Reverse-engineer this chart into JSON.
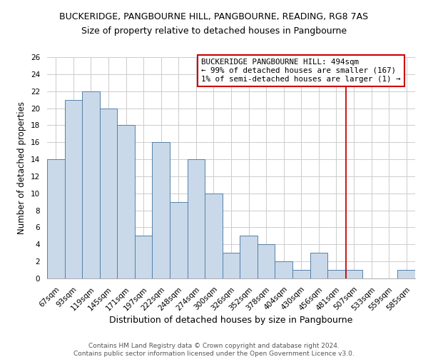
{
  "title": "BUCKERIDGE, PANGBOURNE HILL, PANGBOURNE, READING, RG8 7AS",
  "subtitle": "Size of property relative to detached houses in Pangbourne",
  "xlabel": "Distribution of detached houses by size in Pangbourne",
  "ylabel": "Number of detached properties",
  "bar_color": "#c9d9ea",
  "bar_edge_color": "#5580a8",
  "categories": [
    "67sqm",
    "93sqm",
    "119sqm",
    "145sqm",
    "171sqm",
    "197sqm",
    "222sqm",
    "248sqm",
    "274sqm",
    "300sqm",
    "326sqm",
    "352sqm",
    "378sqm",
    "404sqm",
    "430sqm",
    "456sqm",
    "481sqm",
    "507sqm",
    "533sqm",
    "559sqm",
    "585sqm"
  ],
  "values": [
    14,
    21,
    22,
    20,
    18,
    5,
    16,
    9,
    14,
    10,
    3,
    5,
    4,
    2,
    1,
    3,
    1,
    1,
    0,
    0,
    1
  ],
  "ylim": [
    0,
    26
  ],
  "yticks": [
    0,
    2,
    4,
    6,
    8,
    10,
    12,
    14,
    16,
    18,
    20,
    22,
    24,
    26
  ],
  "annotation_box_text": "BUCKERIDGE PANGBOURNE HILL: 494sqm\n← 99% of detached houses are smaller (167)\n1% of semi-detached houses are larger (1) →",
  "vline_x_index": 16.57,
  "vline_color": "#cc0000",
  "annotation_box_color": "#cc0000",
  "footer1": "Contains HM Land Registry data © Crown copyright and database right 2024.",
  "footer2": "Contains public sector information licensed under the Open Government Licence v3.0.",
  "background_color": "#ffffff",
  "grid_color": "#cccccc",
  "title_fontsize": 9,
  "subtitle_fontsize": 9,
  "tick_label_fontsize": 7.5,
  "ylabel_fontsize": 8.5,
  "xlabel_fontsize": 9,
  "annotation_fontsize": 7.8,
  "footer_fontsize": 6.5
}
